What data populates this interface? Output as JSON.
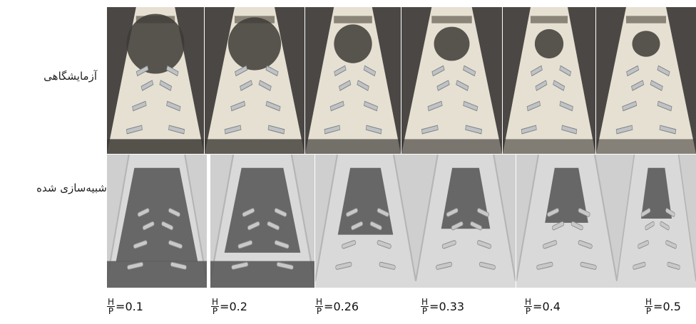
{
  "labels": {
    "laboratory": "آزمایشگاهی",
    "simulation": "شبیه‌سازی شده"
  },
  "ratio_symbol": {
    "numerator": "H",
    "denominator": "P"
  },
  "ratios": [
    "=0.1",
    "=0.2",
    "=0.26",
    "=0.33",
    "=0.4",
    "=0.5"
  ],
  "dark_fill_levels": [
    0.9,
    0.75,
    0.45,
    0.35,
    0.25,
    0.18
  ],
  "colors": {
    "photo_wall": "#4a4744",
    "photo_floor": "#e6e0d2",
    "grain": "#3d3a36",
    "baffle": "#bfc3c6",
    "sim_background": "#d9d9d9",
    "sim_dark": "#5a5a5a"
  }
}
